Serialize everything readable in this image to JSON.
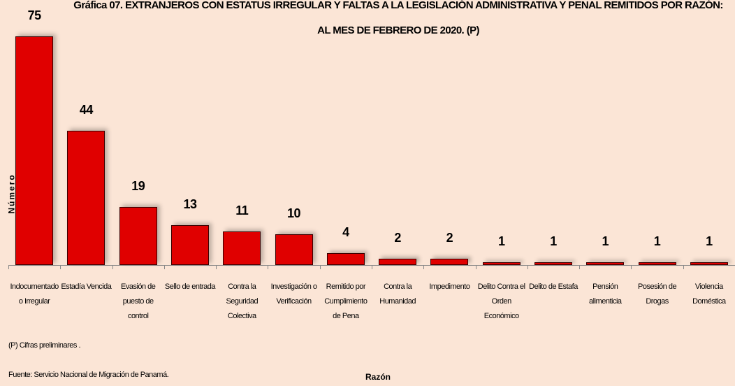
{
  "chart_data": {
    "type": "bar",
    "title": "Gráfica 07. EXTRANJEROS CON ESTATUS IRREGULAR Y FALTAS A LA LEGISLACIÓN ADMINISTRATIVA Y PENAL REMITIDOS POR RAZÓN: AL MES DE FEBRERO DE 2020. (P)",
    "y_axis_label": "Número",
    "x_axis_label": "Razón",
    "categories": [
      "Indocumentado o Irregular",
      "Estadía Vencida",
      "Evasión de puesto de control",
      "Sello de entrada",
      "Contra la Seguridad Colectiva",
      "Investigación o Verificación",
      "Remitido por Cumplimiento de Pena",
      "Contra la Humanidad",
      "Impedimento",
      "Delito Contra el Orden Económico",
      "Delito de Estafa",
      "Pensión alimenticia",
      "Posesión de Drogas",
      "Violencia Doméstica"
    ],
    "values": [
      75,
      44,
      19,
      13,
      11,
      10,
      4,
      2,
      2,
      1,
      1,
      1,
      1,
      1
    ],
    "color": "#e00000",
    "notes": [
      "(P) Cifras preliminares .",
      "Fuente: Servicio Nacional de Migración de Panamá."
    ]
  }
}
